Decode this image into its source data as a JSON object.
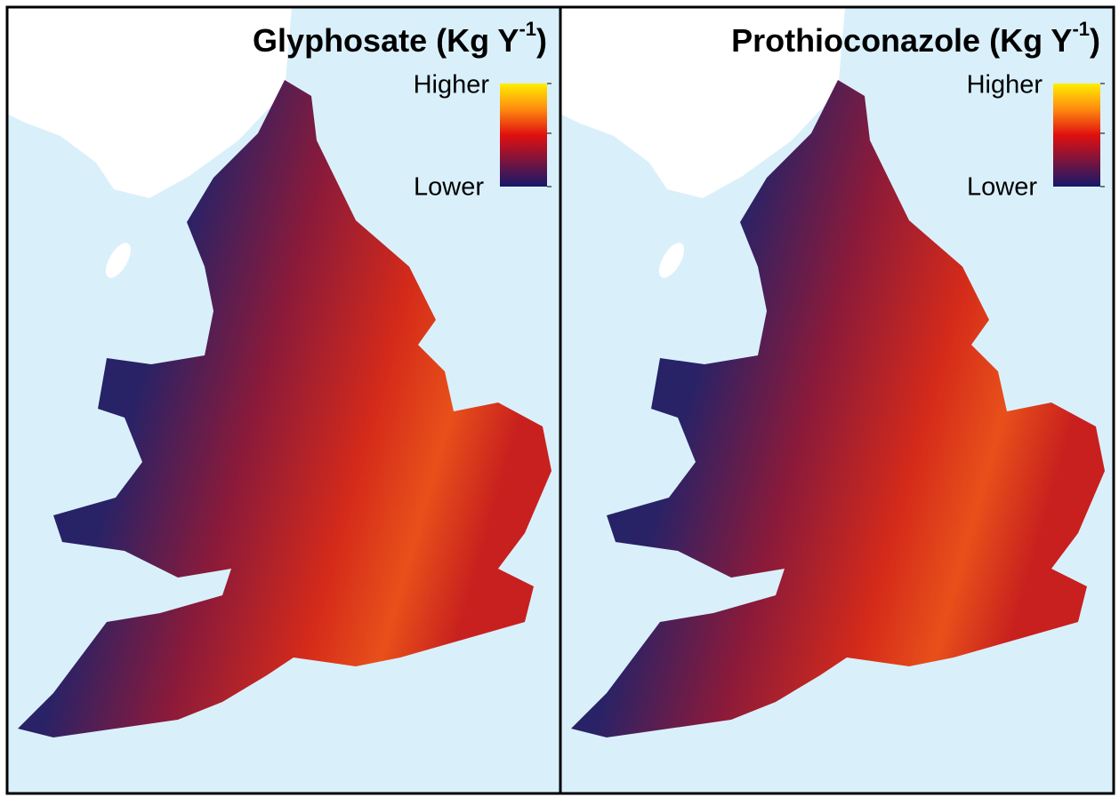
{
  "panels": [
    {
      "title": "Glyphosate (Kg Y",
      "title_superscript": "-1",
      "title_end": ")",
      "legend_high": "Higher",
      "legend_low": "Lower"
    },
    {
      "title": "Prothioconazole (Kg Y",
      "title_superscript": "-1",
      "title_end": ")",
      "legend_high": "Higher",
      "legend_low": "Lower"
    }
  ]
}
